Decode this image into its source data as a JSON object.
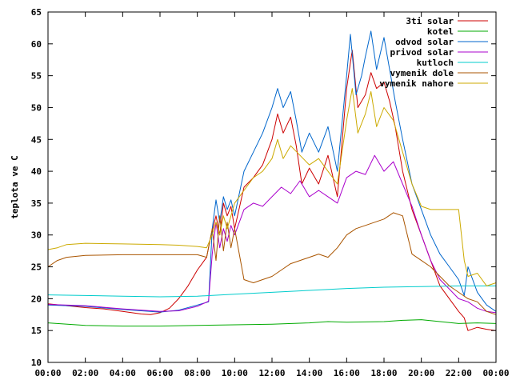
{
  "chart_data": {
    "type": "line",
    "ylabel": "teplota ve C",
    "xlabel": "",
    "ylim": [
      10,
      65
    ],
    "yticks": [
      10,
      15,
      20,
      25,
      30,
      35,
      40,
      45,
      50,
      55,
      60,
      65
    ],
    "xlim": [
      0,
      24
    ],
    "xticks": [
      "00:00",
      "02:00",
      "04:00",
      "06:00",
      "08:00",
      "10:00",
      "12:00",
      "14:00",
      "16:00",
      "18:00",
      "20:00",
      "22:00",
      "00:00"
    ],
    "grid": false,
    "legend_position": "top-right",
    "series": [
      {
        "name": "3ti solar",
        "color": "#cc0000",
        "x": [
          0,
          1,
          2,
          3,
          4,
          5,
          5.5,
          6,
          6.5,
          7,
          7.5,
          8,
          8.5,
          8.7,
          9,
          9.2,
          9.4,
          9.6,
          9.8,
          10,
          10.5,
          11,
          11.5,
          12,
          12.3,
          12.6,
          13,
          13.3,
          13.6,
          14,
          14.5,
          15,
          15.5,
          16,
          16.3,
          16.6,
          17,
          17.3,
          17.6,
          18,
          18.3,
          18.6,
          19,
          19.5,
          20,
          20.5,
          21,
          21.5,
          22,
          22.3,
          22.5,
          23,
          23.5,
          24
        ],
        "values": [
          19.2,
          18.9,
          18.6,
          18.4,
          18.0,
          17.6,
          17.5,
          17.8,
          18.5,
          20.0,
          22.0,
          24.5,
          26.5,
          29.5,
          33.0,
          30.0,
          35.0,
          33.0,
          34.5,
          31.0,
          37.5,
          39.0,
          41.0,
          45.0,
          49.0,
          46.0,
          48.5,
          44.0,
          38.0,
          40.5,
          38.0,
          42.5,
          36.0,
          53.0,
          59.0,
          50.0,
          52.0,
          55.5,
          53.0,
          54.0,
          51.0,
          47.0,
          40.0,
          34.0,
          30.0,
          26.0,
          22.0,
          20.0,
          18.0,
          17.0,
          15.0,
          15.5,
          15.2,
          15.0
        ]
      },
      {
        "name": "kotel",
        "color": "#00aa00",
        "x": [
          0,
          2,
          4,
          6,
          8,
          10,
          12,
          14,
          15,
          16,
          18,
          19,
          20,
          21,
          22,
          23,
          24
        ],
        "values": [
          16.2,
          15.8,
          15.7,
          15.7,
          15.8,
          15.9,
          16.0,
          16.2,
          16.4,
          16.3,
          16.4,
          16.6,
          16.7,
          16.4,
          16.1,
          16.2,
          16.1
        ]
      },
      {
        "name": "odvod solar",
        "color": "#0066cc",
        "x": [
          0,
          2,
          4,
          6,
          7,
          8,
          8.6,
          8.8,
          9,
          9.2,
          9.4,
          9.6,
          9.8,
          10,
          10.5,
          11,
          11.5,
          12,
          12.3,
          12.6,
          13,
          13.3,
          13.6,
          14,
          14.5,
          15,
          15.5,
          16,
          16.2,
          16.5,
          16.8,
          17,
          17.3,
          17.6,
          18,
          18.3,
          18.6,
          19,
          19.5,
          20,
          20.5,
          21,
          21.5,
          22,
          22.3,
          22.5,
          23,
          23.5,
          24
        ],
        "values": [
          19.0,
          18.8,
          18.3,
          17.9,
          18.2,
          19.0,
          19.5,
          31.0,
          35.5,
          32.0,
          36.0,
          34.0,
          35.5,
          33.0,
          40.0,
          43.0,
          46.0,
          50.0,
          53.0,
          50.0,
          52.5,
          48.0,
          43.0,
          46.0,
          43.0,
          47.0,
          40.0,
          55.0,
          61.5,
          52.0,
          55.0,
          58.0,
          62.0,
          56.0,
          61.0,
          56.0,
          51.0,
          45.0,
          38.0,
          34.0,
          30.0,
          27.0,
          25.0,
          23.0,
          20.5,
          25.0,
          21.0,
          19.0,
          18.0
        ]
      },
      {
        "name": "privod solar",
        "color": "#aa00cc",
        "x": [
          0,
          2,
          4,
          6,
          7,
          8,
          8.6,
          8.8,
          9,
          9.2,
          9.4,
          9.6,
          9.8,
          10,
          10.5,
          11,
          11.5,
          12,
          12.5,
          13,
          13.5,
          14,
          14.5,
          15,
          15.5,
          16,
          16.5,
          17,
          17.5,
          18,
          18.5,
          19,
          19.5,
          20,
          20.5,
          21,
          21.5,
          22,
          22.5,
          23,
          23.5,
          24
        ],
        "values": [
          19.1,
          18.9,
          18.4,
          18.0,
          18.1,
          18.8,
          19.6,
          27.0,
          32.0,
          28.0,
          31.0,
          29.0,
          31.5,
          30.0,
          34.0,
          35.0,
          34.5,
          36.0,
          37.5,
          36.5,
          38.5,
          36.0,
          37.0,
          36.0,
          35.0,
          39.0,
          40.0,
          39.5,
          42.5,
          40.0,
          41.5,
          38.0,
          34.5,
          30.0,
          26.0,
          23.0,
          21.5,
          20.0,
          19.5,
          18.5,
          18.0,
          17.8
        ]
      },
      {
        "name": "kutloch",
        "color": "#00cccc",
        "x": [
          0,
          2,
          4,
          6,
          8,
          10,
          12,
          14,
          16,
          18,
          20,
          22,
          24
        ],
        "values": [
          20.6,
          20.5,
          20.4,
          20.3,
          20.4,
          20.7,
          21.0,
          21.3,
          21.6,
          21.8,
          21.9,
          22.0,
          22.0
        ]
      },
      {
        "name": "vymenik dole",
        "color": "#aa5500",
        "x": [
          0,
          0.5,
          1,
          2,
          4,
          6,
          8,
          8.5,
          8.8,
          9,
          9.2,
          9.4,
          9.6,
          9.8,
          10,
          10.5,
          11,
          11.5,
          12,
          12.5,
          13,
          13.5,
          14,
          14.5,
          15,
          15.5,
          16,
          16.5,
          17,
          17.5,
          18,
          18.5,
          19,
          19.5,
          20,
          20.5,
          21,
          21.5,
          22,
          22.5,
          23,
          23.5,
          24
        ],
        "values": [
          25.0,
          26.0,
          26.5,
          26.8,
          26.9,
          26.9,
          26.9,
          26.5,
          31.0,
          26.0,
          33.0,
          27.5,
          32.0,
          28.0,
          31.0,
          23.0,
          22.5,
          23.0,
          23.5,
          24.5,
          25.5,
          26.0,
          26.5,
          27.0,
          26.5,
          28.0,
          30.0,
          31.0,
          31.5,
          32.0,
          32.5,
          33.5,
          33.0,
          27.0,
          26.0,
          25.0,
          23.5,
          22.0,
          21.0,
          20.0,
          19.5,
          18.0,
          17.5
        ]
      },
      {
        "name": "vymenik nahore",
        "color": "#ccaa00",
        "x": [
          0,
          0.5,
          1,
          2,
          4,
          6,
          7,
          8,
          8.5,
          8.8,
          9,
          9.2,
          9.4,
          9.6,
          9.8,
          10,
          10.5,
          11,
          11.5,
          12,
          12.3,
          12.6,
          13,
          13.5,
          14,
          14.5,
          15,
          15.5,
          16,
          16.3,
          16.6,
          17,
          17.3,
          17.6,
          18,
          18.5,
          19,
          19.5,
          20,
          20.5,
          21,
          21.5,
          22,
          22.3,
          22.5,
          23,
          23.5,
          24
        ],
        "values": [
          27.7,
          28.0,
          28.5,
          28.7,
          28.6,
          28.5,
          28.4,
          28.2,
          28.0,
          30.0,
          32.0,
          30.0,
          33.0,
          31.0,
          33.0,
          35.0,
          37.0,
          39.0,
          40.0,
          42.0,
          45.0,
          42.0,
          44.0,
          42.5,
          41.0,
          42.0,
          40.0,
          38.0,
          48.0,
          53.0,
          46.0,
          49.0,
          52.5,
          47.0,
          50.0,
          48.0,
          43.0,
          38.0,
          34.5,
          34.0,
          34.0,
          34.0,
          34.0,
          26.0,
          23.5,
          24.0,
          22.0,
          22.5
        ]
      }
    ]
  }
}
